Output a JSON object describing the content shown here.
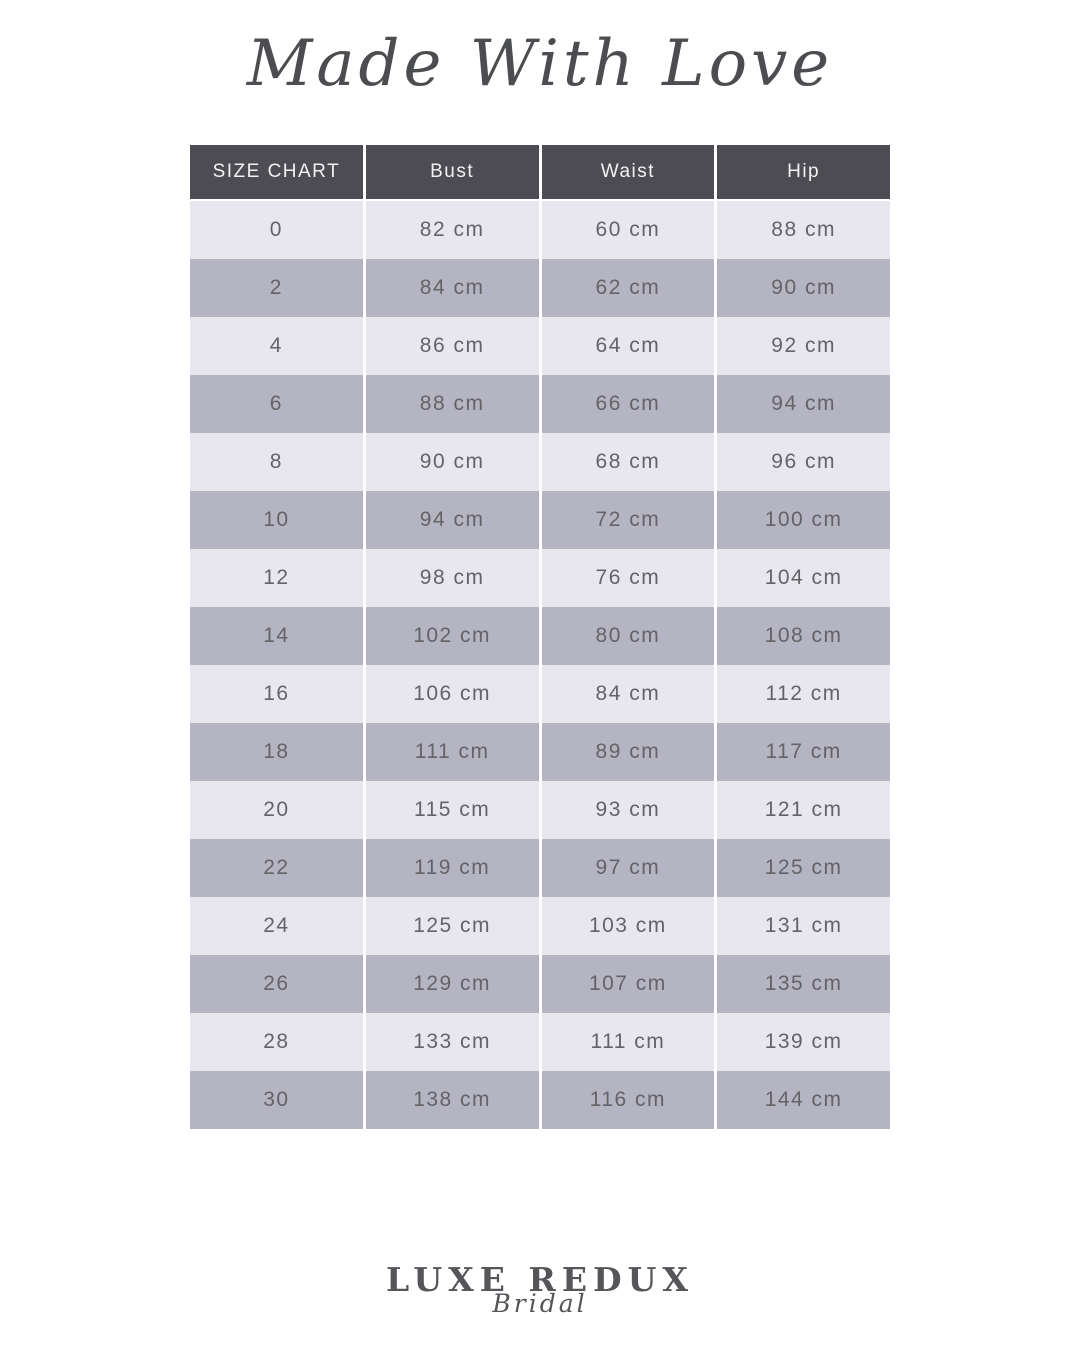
{
  "title": "Made With Love",
  "table": {
    "headers": [
      "SIZE CHART",
      "Bust",
      "Waist",
      "Hip"
    ],
    "rows": [
      {
        "size": "0",
        "bust": "82 cm",
        "waist": "60 cm",
        "hip": "88 cm"
      },
      {
        "size": "2",
        "bust": "84 cm",
        "waist": "62 cm",
        "hip": "90 cm"
      },
      {
        "size": "4",
        "bust": "86 cm",
        "waist": "64 cm",
        "hip": "92 cm"
      },
      {
        "size": "6",
        "bust": "88 cm",
        "waist": "66 cm",
        "hip": "94 cm"
      },
      {
        "size": "8",
        "bust": "90 cm",
        "waist": "68 cm",
        "hip": "96 cm"
      },
      {
        "size": "10",
        "bust": "94 cm",
        "waist": "72 cm",
        "hip": "100 cm"
      },
      {
        "size": "12",
        "bust": "98 cm",
        "waist": "76 cm",
        "hip": "104 cm"
      },
      {
        "size": "14",
        "bust": "102 cm",
        "waist": "80 cm",
        "hip": "108 cm"
      },
      {
        "size": "16",
        "bust": "106 cm",
        "waist": "84 cm",
        "hip": "112 cm"
      },
      {
        "size": "18",
        "bust": "111 cm",
        "waist": "89 cm",
        "hip": "117 cm"
      },
      {
        "size": "20",
        "bust": "115 cm",
        "waist": "93 cm",
        "hip": "121 cm"
      },
      {
        "size": "22",
        "bust": "119 cm",
        "waist": "97 cm",
        "hip": "125 cm"
      },
      {
        "size": "24",
        "bust": "125 cm",
        "waist": "103 cm",
        "hip": "131 cm"
      },
      {
        "size": "26",
        "bust": "129 cm",
        "waist": "107 cm",
        "hip": "135 cm"
      },
      {
        "size": "28",
        "bust": "133 cm",
        "waist": "111 cm",
        "hip": "139 cm"
      },
      {
        "size": "30",
        "bust": "138 cm",
        "waist": "116 cm",
        "hip": "144 cm"
      }
    ]
  },
  "logo": {
    "primary": "LUXE REDUX",
    "script": "Bridal"
  },
  "colors": {
    "header_bg": "#4c4c52",
    "header_text": "#f2f2f4",
    "row_light": "#e8e7ee",
    "row_dark": "#b5b4c3",
    "cell_text": "#636368",
    "title_text": "#4c4d50",
    "logo_text": "#56565a"
  }
}
